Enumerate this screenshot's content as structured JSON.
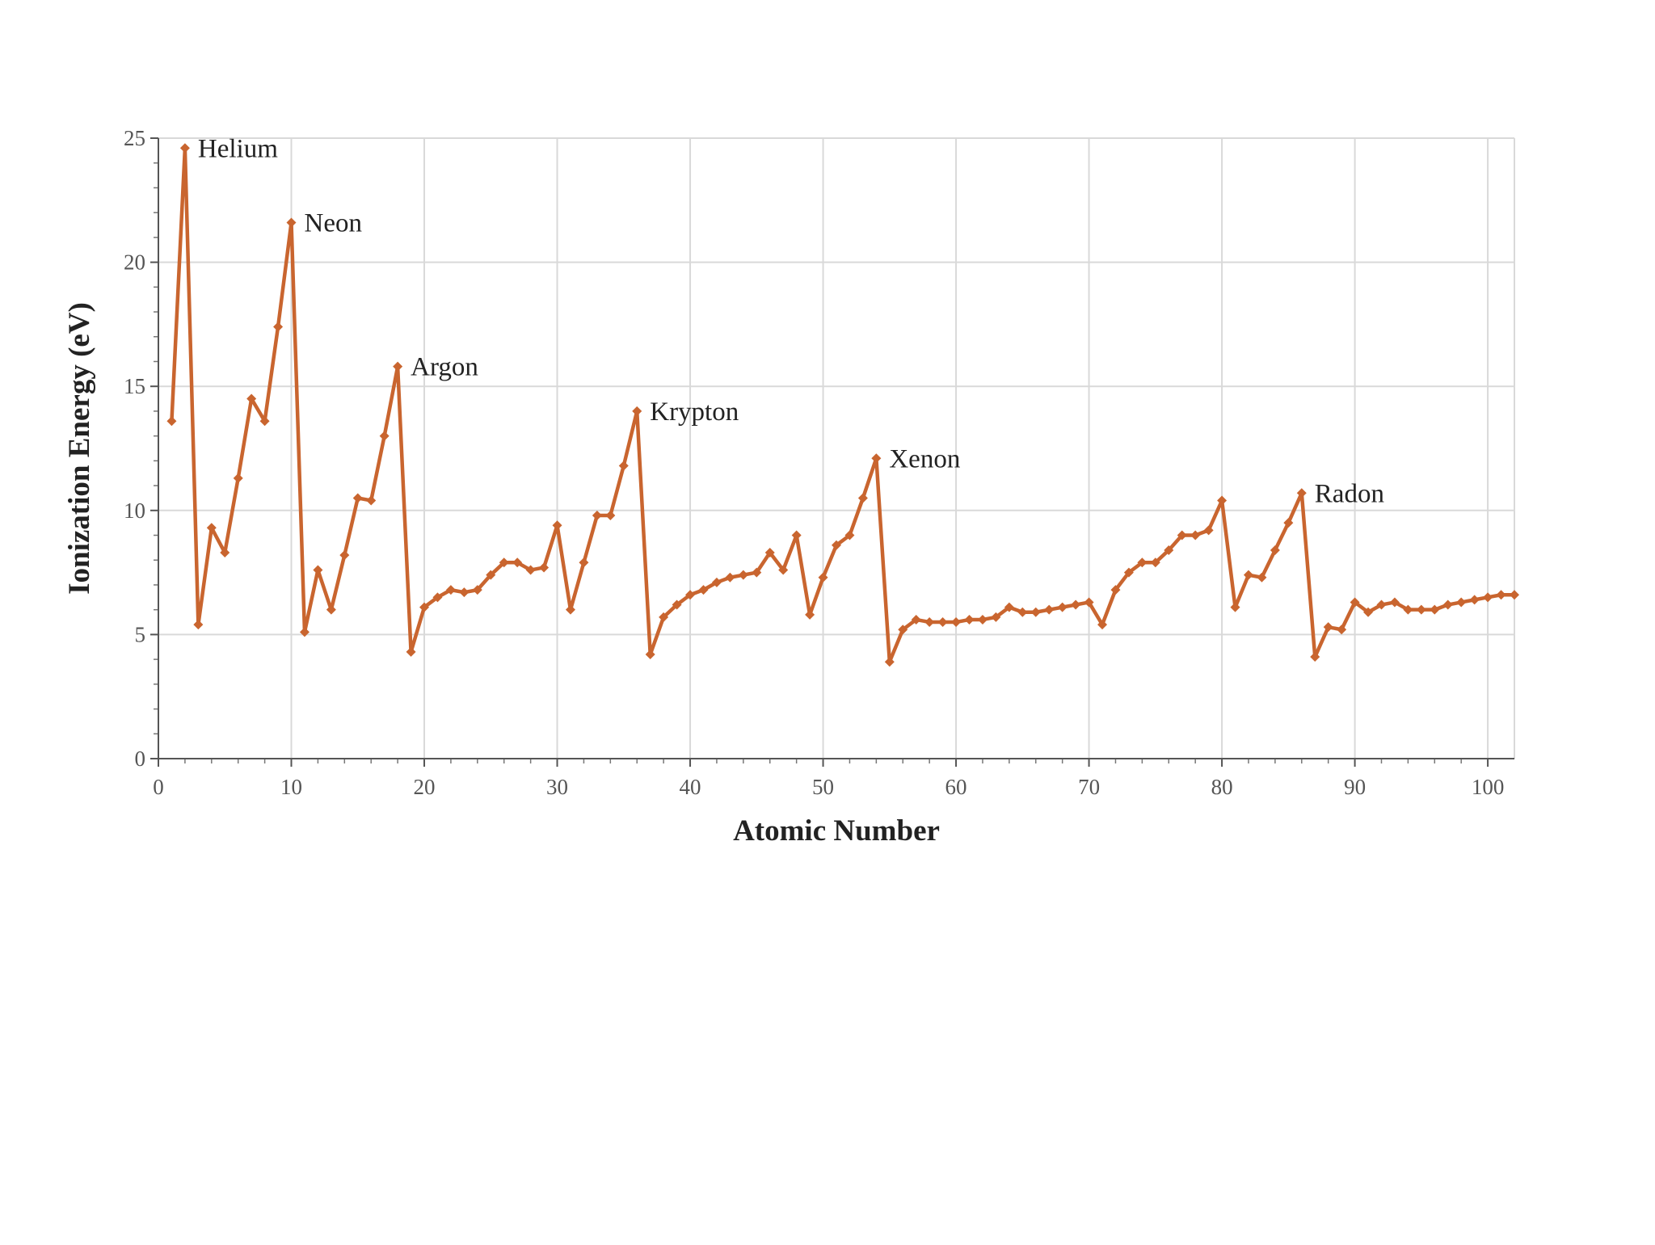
{
  "chart_data": {
    "type": "line",
    "title": "",
    "xlabel": "Atomic Number",
    "ylabel": "Ionization Energy (eV)",
    "xlim": [
      0,
      102
    ],
    "ylim": [
      0,
      25
    ],
    "x_ticks": [
      0,
      10,
      20,
      30,
      40,
      50,
      60,
      70,
      80,
      90,
      100
    ],
    "y_ticks": [
      0,
      5,
      10,
      15,
      20,
      25
    ],
    "grid": true,
    "legend": "none",
    "series": [
      {
        "color": "#c9652f",
        "x": [
          1,
          2,
          3,
          4,
          5,
          6,
          7,
          8,
          9,
          10,
          11,
          12,
          13,
          14,
          15,
          16,
          17,
          18,
          19,
          20,
          21,
          22,
          23,
          24,
          25,
          26,
          27,
          28,
          29,
          30,
          31,
          32,
          33,
          34,
          35,
          36,
          37,
          38,
          39,
          40,
          41,
          42,
          43,
          44,
          45,
          46,
          47,
          48,
          49,
          50,
          51,
          52,
          53,
          54,
          55,
          56,
          57,
          58,
          59,
          60,
          61,
          62,
          63,
          64,
          65,
          66,
          67,
          68,
          69,
          70,
          71,
          72,
          73,
          74,
          75,
          76,
          77,
          78,
          79,
          80,
          81,
          82,
          83,
          84,
          85,
          86,
          87,
          88,
          89,
          90,
          91,
          92,
          93,
          94,
          95,
          96,
          97,
          98,
          99,
          100,
          101,
          102
        ],
        "y": [
          13.6,
          24.6,
          5.4,
          9.3,
          8.3,
          11.3,
          14.5,
          13.6,
          17.4,
          21.6,
          5.1,
          7.6,
          6.0,
          8.2,
          10.5,
          10.4,
          13.0,
          15.8,
          4.3,
          6.1,
          6.5,
          6.8,
          6.7,
          6.8,
          7.4,
          7.9,
          7.9,
          7.6,
          7.7,
          9.4,
          6.0,
          7.9,
          9.8,
          9.8,
          11.8,
          14.0,
          4.2,
          5.7,
          6.2,
          6.6,
          6.8,
          7.1,
          7.3,
          7.4,
          7.5,
          8.3,
          7.6,
          9.0,
          5.8,
          7.3,
          8.6,
          9.0,
          10.5,
          12.1,
          3.9,
          5.2,
          5.6,
          5.5,
          5.5,
          5.5,
          5.6,
          5.6,
          5.7,
          6.1,
          5.9,
          5.9,
          6.0,
          6.1,
          6.2,
          6.3,
          5.4,
          6.8,
          7.5,
          7.9,
          7.9,
          8.4,
          9.0,
          9.0,
          9.2,
          10.4,
          6.1,
          7.4,
          7.3,
          8.4,
          9.5,
          10.7,
          4.1,
          5.3,
          5.2,
          6.3,
          5.9,
          6.2,
          6.3,
          6.0,
          6.0,
          6.0,
          6.2,
          6.3,
          6.4,
          6.5,
          6.6,
          6.6
        ]
      }
    ],
    "annotations": [
      {
        "label": "Helium",
        "x": 2,
        "y": 24.6
      },
      {
        "label": "Neon",
        "x": 10,
        "y": 21.6
      },
      {
        "label": "Argon",
        "x": 18,
        "y": 15.8
      },
      {
        "label": "Krypton",
        "x": 36,
        "y": 14.0
      },
      {
        "label": "Xenon",
        "x": 54,
        "y": 12.1
      },
      {
        "label": "Radon",
        "x": 86,
        "y": 10.7
      }
    ]
  }
}
